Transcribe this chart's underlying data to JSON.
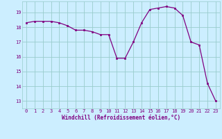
{
  "x": [
    0,
    1,
    2,
    3,
    4,
    5,
    6,
    7,
    8,
    9,
    10,
    11,
    12,
    13,
    14,
    15,
    16,
    17,
    18,
    19,
    20,
    21,
    22,
    23
  ],
  "y": [
    18.3,
    18.4,
    18.4,
    18.4,
    18.3,
    18.1,
    17.8,
    17.8,
    17.7,
    17.5,
    17.5,
    15.9,
    15.9,
    17.0,
    18.3,
    19.2,
    19.3,
    19.4,
    19.3,
    18.8,
    17.0,
    16.8,
    14.2,
    13.0
  ],
  "xlabel": "Windchill (Refroidissement éolien,°C)",
  "xlim": [
    -0.5,
    23.5
  ],
  "ylim": [
    12.5,
    19.75
  ],
  "yticks": [
    13,
    14,
    15,
    16,
    17,
    18,
    19
  ],
  "xticks": [
    0,
    1,
    2,
    3,
    4,
    5,
    6,
    7,
    8,
    9,
    10,
    11,
    12,
    13,
    14,
    15,
    16,
    17,
    18,
    19,
    20,
    21,
    22,
    23
  ],
  "line_color": "#800080",
  "marker_color": "#800080",
  "bg_color": "#cceeff",
  "grid_color": "#99cccc",
  "font_color": "#800080",
  "tick_fontsize": 5.0,
  "xlabel_fontsize": 5.5,
  "linewidth": 0.9,
  "markersize": 2.0
}
